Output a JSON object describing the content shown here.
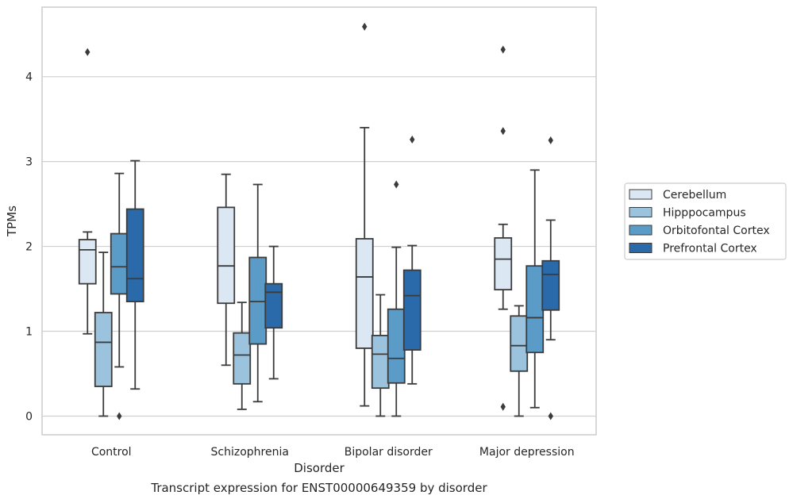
{
  "caption": "Transcript expression for ENST00000649359 by disorder",
  "chart_data": {
    "type": "box",
    "title": "",
    "xlabel": "Disorder",
    "ylabel": "TPMs",
    "ylim": [
      -0.22,
      4.82
    ],
    "yticks": [
      0,
      1,
      2,
      3,
      4
    ],
    "grid": "horizontal",
    "legend_position": "right",
    "categories": [
      "Control",
      "Schizophrenia",
      "Bipolar disorder",
      "Major depression"
    ],
    "series": [
      {
        "name": "Cerebellum",
        "color": "#dbe8f4",
        "boxes": [
          {
            "whislo": 0.97,
            "q1": 1.56,
            "med": 1.96,
            "q3": 2.08,
            "whishi": 2.17,
            "fliers": [
              4.29
            ]
          },
          {
            "whislo": 0.6,
            "q1": 1.33,
            "med": 1.77,
            "q3": 2.46,
            "whishi": 2.85,
            "fliers": []
          },
          {
            "whislo": 0.12,
            "q1": 0.8,
            "med": 1.64,
            "q3": 2.09,
            "whishi": 3.4,
            "fliers": [
              4.59
            ]
          },
          {
            "whislo": 1.26,
            "q1": 1.49,
            "med": 1.85,
            "q3": 2.1,
            "whishi": 2.26,
            "fliers": [
              3.36,
              4.32,
              0.11
            ]
          }
        ]
      },
      {
        "name": "Hipppocampus",
        "color": "#9bc3de",
        "boxes": [
          {
            "whislo": 0.0,
            "q1": 0.35,
            "med": 0.87,
            "q3": 1.22,
            "whishi": 1.93,
            "fliers": []
          },
          {
            "whislo": 0.08,
            "q1": 0.38,
            "med": 0.72,
            "q3": 0.98,
            "whishi": 1.34,
            "fliers": []
          },
          {
            "whislo": 0.0,
            "q1": 0.33,
            "med": 0.73,
            "q3": 0.95,
            "whishi": 1.43,
            "fliers": []
          },
          {
            "whislo": 0.0,
            "q1": 0.53,
            "med": 0.83,
            "q3": 1.18,
            "whishi": 1.3,
            "fliers": []
          }
        ]
      },
      {
        "name": "Orbitofontal Cortex",
        "color": "#5a9bc8",
        "boxes": [
          {
            "whislo": 0.58,
            "q1": 1.44,
            "med": 1.76,
            "q3": 2.15,
            "whishi": 2.86,
            "fliers": [
              0.0
            ]
          },
          {
            "whislo": 0.17,
            "q1": 0.85,
            "med": 1.35,
            "q3": 1.87,
            "whishi": 2.73,
            "fliers": []
          },
          {
            "whislo": 0.0,
            "q1": 0.39,
            "med": 0.68,
            "q3": 1.26,
            "whishi": 1.99,
            "fliers": [
              2.73
            ]
          },
          {
            "whislo": 0.1,
            "q1": 0.75,
            "med": 1.16,
            "q3": 1.77,
            "whishi": 2.9,
            "fliers": []
          }
        ]
      },
      {
        "name": "Prefrontal Cortex",
        "color": "#2a6aab",
        "boxes": [
          {
            "whislo": 0.32,
            "q1": 1.35,
            "med": 1.62,
            "q3": 2.44,
            "whishi": 3.01,
            "fliers": []
          },
          {
            "whislo": 0.44,
            "q1": 1.04,
            "med": 1.46,
            "q3": 1.56,
            "whishi": 2.0,
            "fliers": []
          },
          {
            "whislo": 0.38,
            "q1": 0.78,
            "med": 1.42,
            "q3": 1.72,
            "whishi": 2.01,
            "fliers": [
              3.26
            ]
          },
          {
            "whislo": 0.9,
            "q1": 1.25,
            "med": 1.67,
            "q3": 1.83,
            "whishi": 2.31,
            "fliers": [
              3.25,
              0.0
            ]
          }
        ]
      }
    ]
  }
}
